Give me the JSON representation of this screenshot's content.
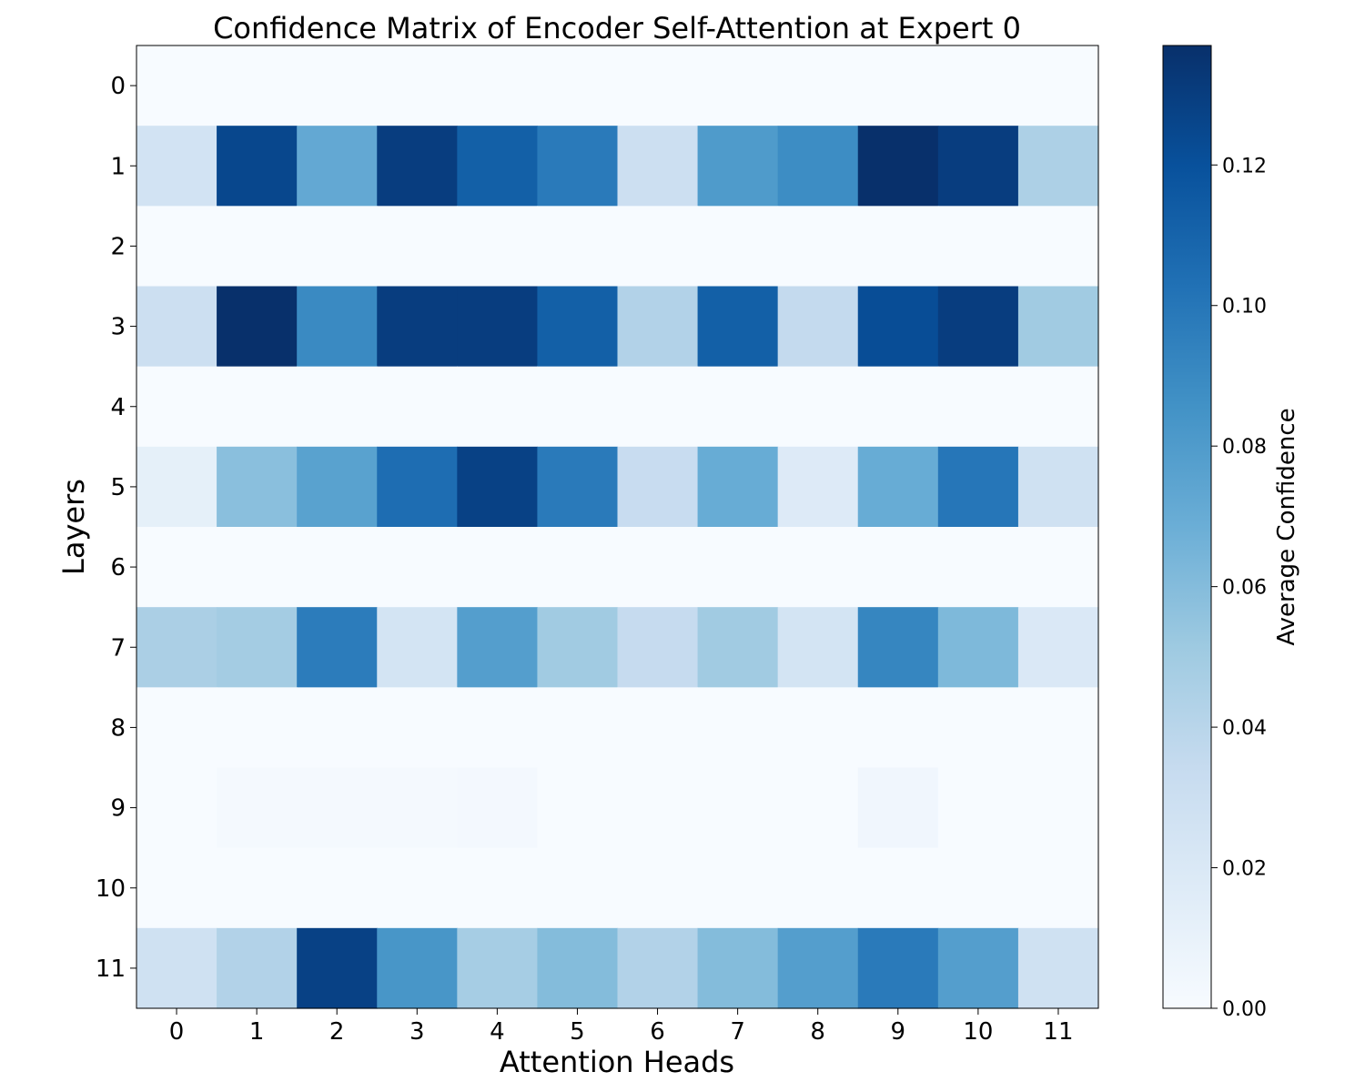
{
  "chart_data": {
    "type": "heatmap",
    "title": "Confidence Matrix of Encoder Self-Attention at Expert 0",
    "xlabel": "Attention Heads",
    "ylabel": "Layers",
    "x_categories": [
      "0",
      "1",
      "2",
      "3",
      "4",
      "5",
      "6",
      "7",
      "8",
      "9",
      "10",
      "11"
    ],
    "y_categories": [
      "0",
      "1",
      "2",
      "3",
      "4",
      "5",
      "6",
      "7",
      "8",
      "9",
      "10",
      "11"
    ],
    "values": [
      [
        0.0,
        0.0,
        0.0,
        0.0,
        0.0,
        0.0,
        0.0,
        0.0,
        0.0,
        0.0,
        0.0,
        0.0
      ],
      [
        0.026,
        0.125,
        0.072,
        0.13,
        0.112,
        0.098,
        0.03,
        0.08,
        0.088,
        0.137,
        0.13,
        0.045
      ],
      [
        0.0,
        0.0,
        0.0,
        0.0,
        0.0,
        0.0,
        0.0,
        0.0,
        0.0,
        0.0,
        0.0,
        0.0
      ],
      [
        0.03,
        0.137,
        0.09,
        0.13,
        0.13,
        0.112,
        0.043,
        0.112,
        0.035,
        0.122,
        0.13,
        0.05
      ],
      [
        0.0,
        0.0,
        0.0,
        0.0,
        0.0,
        0.0,
        0.0,
        0.0,
        0.0,
        0.0,
        0.0,
        0.0
      ],
      [
        0.012,
        0.058,
        0.076,
        0.105,
        0.128,
        0.098,
        0.033,
        0.07,
        0.018,
        0.07,
        0.1,
        0.028
      ],
      [
        0.0,
        0.0,
        0.0,
        0.0,
        0.0,
        0.0,
        0.0,
        0.0,
        0.0,
        0.0,
        0.0,
        0.0
      ],
      [
        0.046,
        0.049,
        0.097,
        0.025,
        0.078,
        0.05,
        0.034,
        0.05,
        0.025,
        0.092,
        0.062,
        0.02
      ],
      [
        0.0,
        0.0,
        0.0,
        0.0,
        0.0,
        0.0,
        0.0,
        0.0,
        0.0,
        0.0,
        0.0,
        0.0
      ],
      [
        0.0,
        0.002,
        0.002,
        0.002,
        0.003,
        0.0,
        0.0,
        0.0,
        0.0,
        0.005,
        0.0,
        0.0
      ],
      [
        0.0,
        0.0,
        0.0,
        0.0,
        0.0,
        0.0,
        0.0,
        0.0,
        0.0,
        0.0,
        0.0,
        0.0
      ],
      [
        0.028,
        0.043,
        0.128,
        0.083,
        0.048,
        0.06,
        0.043,
        0.06,
        0.078,
        0.098,
        0.078,
        0.028
      ]
    ],
    "colorbar": {
      "label": "Average Confidence",
      "min": 0.0,
      "max": 0.137,
      "ticks": [
        0.0,
        0.02,
        0.04,
        0.06,
        0.08,
        0.1,
        0.12
      ],
      "tick_labels": [
        "0.00",
        "0.02",
        "0.04",
        "0.06",
        "0.08",
        "0.10",
        "0.12"
      ],
      "colormap": "Blues",
      "colormap_stops": [
        "#f7fbff",
        "#deebf7",
        "#c6dbef",
        "#9ecae1",
        "#6baed6",
        "#4292c6",
        "#2171b5",
        "#08519c",
        "#08306b"
      ]
    },
    "grid": false
  }
}
